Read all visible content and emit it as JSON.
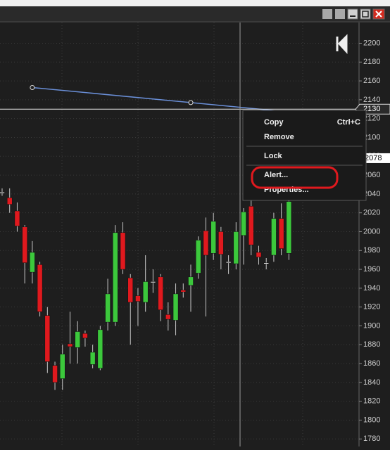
{
  "chart": {
    "ylim": [
      1772,
      2222
    ],
    "yticks": [
      1780,
      1800,
      1820,
      1840,
      1860,
      1880,
      1900,
      1920,
      1940,
      1960,
      1980,
      2000,
      2020,
      2040,
      2060,
      2080,
      2100,
      2120,
      2140,
      2160,
      2180,
      2200
    ],
    "candles": [
      {
        "open": 2042,
        "high": 2046,
        "low": 2038,
        "close": 2042
      },
      {
        "open": 2036,
        "high": 2046,
        "low": 2020,
        "close": 2029
      },
      {
        "open": 2022,
        "high": 2031,
        "low": 2000,
        "close": 2006
      },
      {
        "open": 2005,
        "high": 2007,
        "low": 1945,
        "close": 1967
      },
      {
        "open": 1957,
        "high": 1990,
        "low": 1945,
        "close": 1978
      },
      {
        "open": 1965,
        "high": 1968,
        "low": 1910,
        "close": 1915
      },
      {
        "open": 1911,
        "high": 1920,
        "low": 1850,
        "close": 1862
      },
      {
        "open": 1858,
        "high": 1862,
        "low": 1832,
        "close": 1840
      },
      {
        "open": 1844,
        "high": 1880,
        "low": 1832,
        "close": 1870
      },
      {
        "open": 1881,
        "high": 1915,
        "low": 1860,
        "close": 1878
      },
      {
        "open": 1877,
        "high": 1905,
        "low": 1860,
        "close": 1894
      },
      {
        "open": 1892,
        "high": 1895,
        "low": 1878,
        "close": 1887
      },
      {
        "open": 1859,
        "high": 1880,
        "low": 1855,
        "close": 1872
      },
      {
        "open": 1855,
        "high": 1900,
        "low": 1853,
        "close": 1896
      },
      {
        "open": 1904,
        "high": 1950,
        "low": 1895,
        "close": 1934
      },
      {
        "open": 1904,
        "high": 2007,
        "low": 1900,
        "close": 1999
      },
      {
        "open": 1999,
        "high": 2010,
        "low": 1955,
        "close": 1960
      },
      {
        "open": 1951,
        "high": 1955,
        "low": 1880,
        "close": 1925
      },
      {
        "open": 1932,
        "high": 1940,
        "low": 1900,
        "close": 1926
      },
      {
        "open": 1925,
        "high": 1975,
        "low": 1915,
        "close": 1947
      },
      {
        "open": 1947,
        "high": 1960,
        "low": 1935,
        "close": 1947
      },
      {
        "open": 1952,
        "high": 1955,
        "low": 1905,
        "close": 1917
      },
      {
        "open": 1912,
        "high": 1925,
        "low": 1895,
        "close": 1907
      },
      {
        "open": 1906,
        "high": 1945,
        "low": 1890,
        "close": 1934
      },
      {
        "open": 1938,
        "high": 1945,
        "low": 1930,
        "close": 1936
      },
      {
        "open": 1943,
        "high": 1965,
        "low": 1915,
        "close": 1952
      },
      {
        "open": 1956,
        "high": 1995,
        "low": 1950,
        "close": 1991
      },
      {
        "open": 2001,
        "high": 2015,
        "low": 1910,
        "close": 1975
      },
      {
        "open": 1977,
        "high": 2020,
        "low": 1970,
        "close": 2011
      },
      {
        "open": 2000,
        "high": 2005,
        "low": 1960,
        "close": 1976
      },
      {
        "open": 1968,
        "high": 1975,
        "low": 1955,
        "close": 1968
      },
      {
        "open": 1966,
        "high": 2010,
        "low": 1960,
        "close": 2000
      },
      {
        "open": 1996,
        "high": 2025,
        "low": 1965,
        "close": 2021
      },
      {
        "open": 2027,
        "high": 2035,
        "low": 1975,
        "close": 1986
      },
      {
        "open": 1978,
        "high": 1985,
        "low": 1965,
        "close": 1973
      },
      {
        "open": 1967,
        "high": 1972,
        "low": 1960,
        "close": 1967
      },
      {
        "open": 1975,
        "high": 2020,
        "low": 1968,
        "close": 2014
      },
      {
        "open": 2014,
        "high": 2030,
        "low": 1975,
        "close": 1982
      },
      {
        "open": 1977,
        "high": 2050,
        "low": 1970,
        "close": 2032
      }
    ],
    "trendline": {
      "start": 2153,
      "end": 2137
    },
    "horizontal_line": 2130,
    "crosshair_price": 2078
  },
  "context_menu": {
    "items": [
      {
        "label": "Copy",
        "shortcut": "Ctrl+C"
      },
      {
        "label": "Remove"
      },
      {
        "label": "Lock"
      },
      {
        "label": "Alert..."
      },
      {
        "label": "Properties..."
      }
    ]
  }
}
